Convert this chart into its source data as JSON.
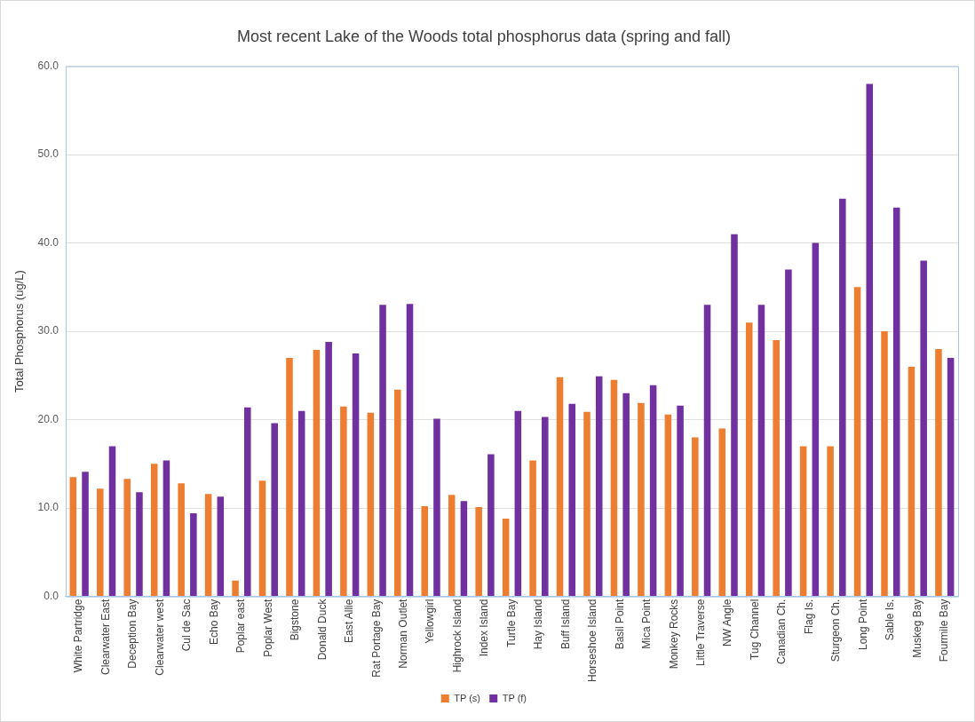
{
  "chart_data": {
    "type": "bar",
    "title": "Most recent Lake of the Woods total phosphorus data (spring and fall)",
    "ylabel": "Total Phosphorus (ug/L)",
    "categories": [
      "White Partridge",
      "Clearwater East",
      "Deception Bay",
      "Clearwater west",
      "Cul de Sac",
      "Echo Bay",
      "Poplar east",
      "Poplar West",
      "Bigstone",
      "Donald Duck",
      "East Allie",
      "Rat Portage Bay",
      "Norman Outlet",
      "Yellowgirl",
      "Highrock Island",
      "Index Island",
      "Turtle Bay",
      "Hay Island",
      "Buff Island",
      "Horseshoe Island",
      "Basil Point",
      "Mica Point",
      "Monkey Rocks",
      "Little Traverse",
      "NW Angle",
      "Tug Channel",
      "Canadian Ch.",
      "Flag Is.",
      "Sturgeon Ch.",
      "Long Point",
      "Sable Is.",
      "Muskeg Bay",
      "Fourmile Bay"
    ],
    "series": [
      {
        "name": "TP (s)",
        "color": "#ed7d31",
        "values": [
          13.5,
          12.2,
          13.3,
          15.0,
          12.8,
          11.6,
          1.8,
          13.1,
          27.0,
          27.9,
          21.5,
          20.8,
          23.4,
          10.2,
          11.5,
          10.1,
          8.8,
          15.4,
          24.8,
          20.9,
          24.5,
          21.9,
          20.6,
          18.0,
          19.0,
          31.0,
          29.0,
          17.0,
          17.0,
          35.0,
          30.0,
          26.0,
          28.0
        ]
      },
      {
        "name": "TP (f)",
        "color": "#7030a0",
        "values": [
          14.1,
          17.0,
          11.8,
          15.4,
          9.4,
          11.3,
          21.4,
          19.6,
          21.0,
          28.8,
          27.5,
          33.0,
          33.1,
          20.1,
          10.8,
          16.1,
          21.0,
          20.3,
          21.8,
          24.9,
          23.0,
          23.9,
          21.6,
          33.0,
          41.0,
          33.0,
          37.0,
          40.0,
          45.0,
          58.0,
          44.0,
          38.0,
          27.0
        ]
      }
    ],
    "ylim": [
      0,
      60
    ],
    "yticks": [
      {
        "value": 0,
        "label": "0.0"
      },
      {
        "value": 10,
        "label": "10.0"
      },
      {
        "value": 20,
        "label": "20.0"
      },
      {
        "value": 30,
        "label": "30.0"
      },
      {
        "value": 40,
        "label": "40.0"
      },
      {
        "value": 50,
        "label": "50.0"
      },
      {
        "value": 60,
        "label": "60.0"
      }
    ],
    "grid": "y",
    "legend": "bottom"
  }
}
